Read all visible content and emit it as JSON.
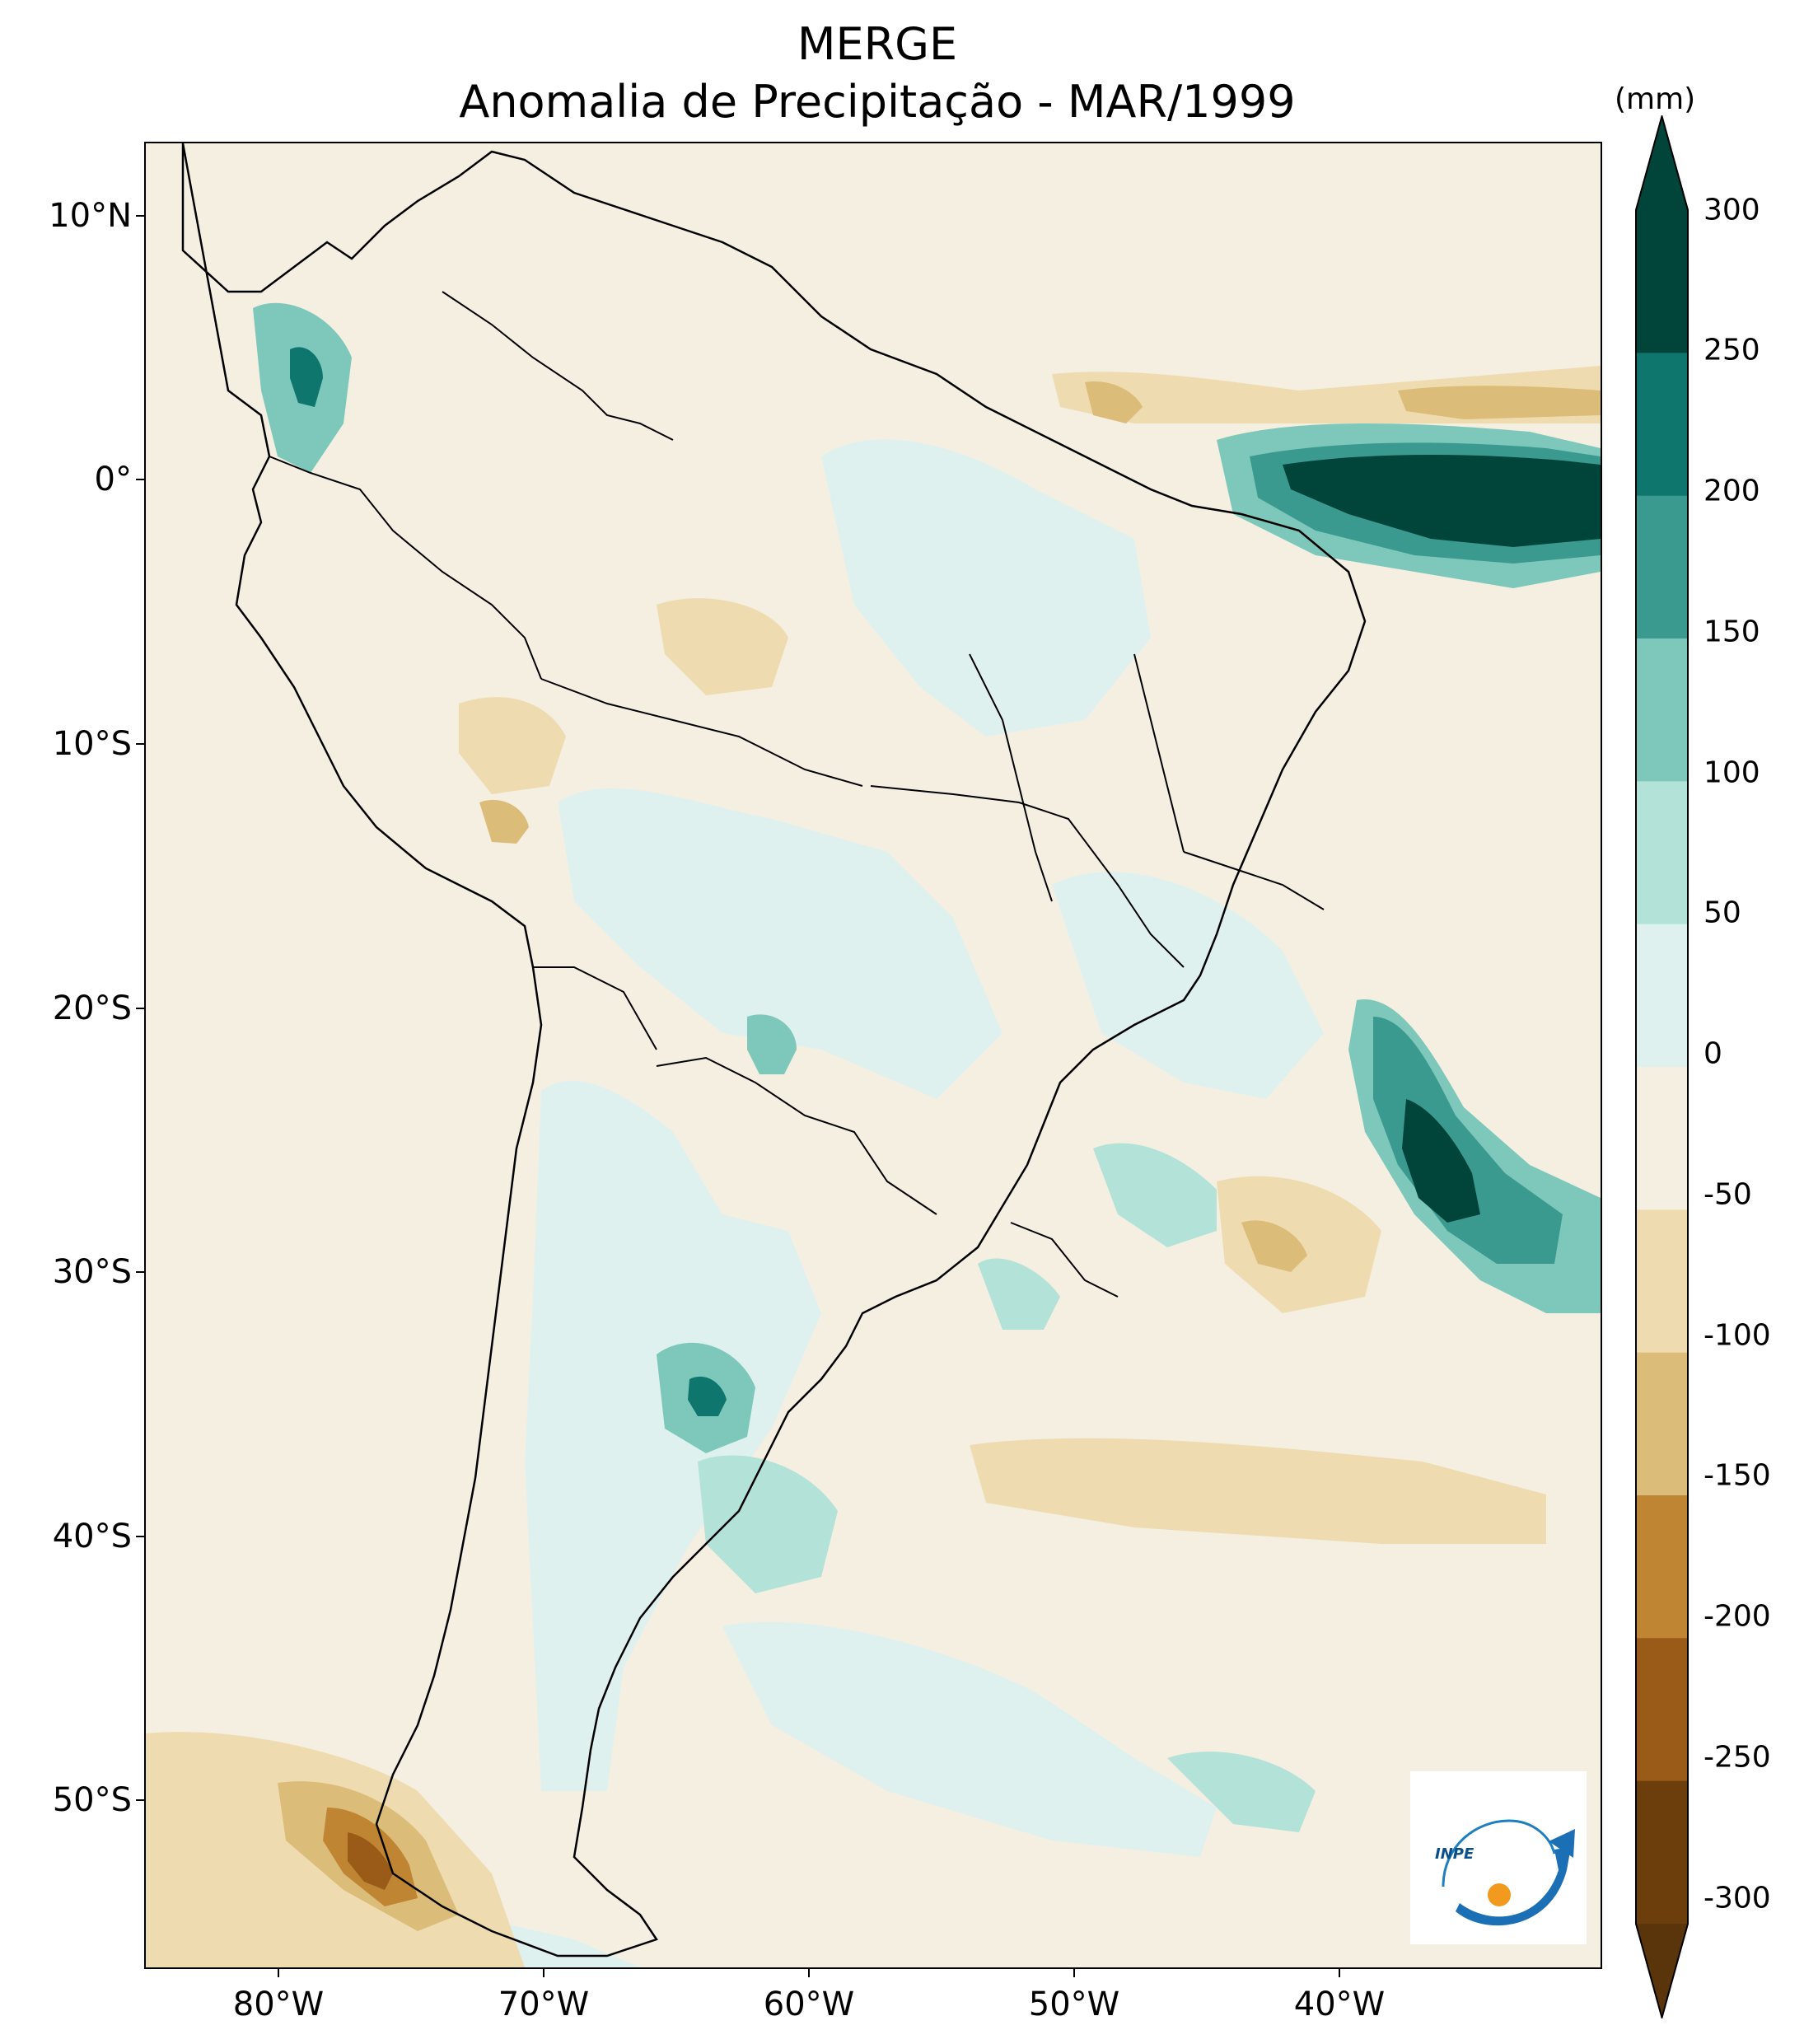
{
  "title": "MERGE",
  "subtitle": "Anomalia de Precipitação - MAR/1999",
  "colorbar": {
    "unit": "(mm)",
    "ticks": [
      "300",
      "250",
      "200",
      "150",
      "100",
      "50",
      "0",
      "-50",
      "-100",
      "-150",
      "-200",
      "-250",
      "-300"
    ],
    "colors": [
      "#01443a",
      "#0f766e",
      "#3b9a8f",
      "#7ec8bb",
      "#b2e2d8",
      "#dff1ee",
      "#f5efe1",
      "#eedcb0",
      "#dcbc79",
      "#bf8532",
      "#995b17",
      "#6b3e0c"
    ],
    "extend_top_color": "#01443a",
    "extend_bottom_color": "#5a340b"
  },
  "axes": {
    "lat_labels": [
      "10°N",
      "0°",
      "10°S",
      "20°S",
      "30°S",
      "40°S",
      "50°S"
    ],
    "lon_labels": [
      "80°W",
      "70°W",
      "60°W",
      "50°W",
      "40°W"
    ]
  },
  "logo": {
    "text": "INPE"
  },
  "chart_data": {
    "type": "heatmap",
    "title": "MERGE",
    "subtitle": "Anomalia de Precipitação - MAR/1999",
    "variable": "Precipitation anomaly",
    "unit": "mm",
    "lon_range": [
      -85,
      -30
    ],
    "lat_range": [
      -56,
      13
    ],
    "levels": [
      -300,
      -250,
      -200,
      -150,
      -100,
      -50,
      0,
      50,
      100,
      150,
      200,
      250,
      300
    ],
    "features": [
      {
        "region": "Equatorial Atlantic near 35°W, 0-3°S",
        "anomaly_mm": 300
      },
      {
        "region": "South Atlantic near 37°W, 26°S",
        "anomaly_mm": 300
      },
      {
        "region": "Western Colombia / Pacific coast near 78°W, 5°N",
        "anomaly_mm": 200
      },
      {
        "region": "Central Argentina near 63°W, 35°S",
        "anomaly_mm": 200
      },
      {
        "region": "Paraguay near 62°W, 22°S",
        "anomaly_mm": 150
      },
      {
        "region": "Southern Chile coast near 75°W, 50°S",
        "anomaly_mm": -200
      },
      {
        "region": "Atlantic near 47°W, 2°N",
        "anomaly_mm": -150
      },
      {
        "region": "Atlantic near 34°W, 3°N",
        "anomaly_mm": -150
      }
    ]
  }
}
